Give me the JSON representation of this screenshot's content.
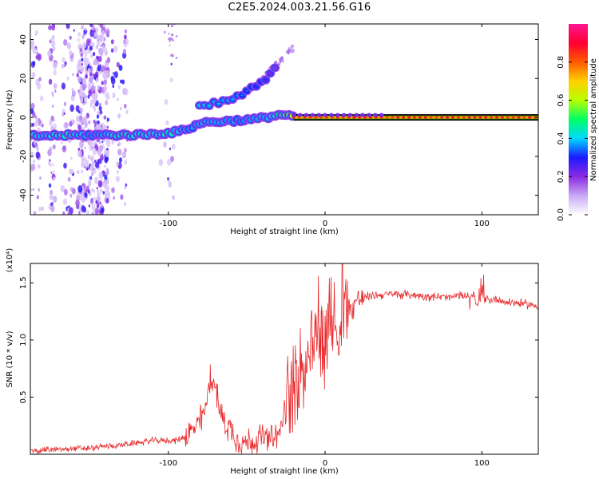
{
  "title": "C2E5.2024.003.21.56.G16",
  "chart_data": [
    {
      "type": "heatmap",
      "xlabel": "Height of straight line (km)",
      "ylabel": "Frequency (Hz)",
      "xlim": [
        -188,
        136
      ],
      "ylim": [
        -50,
        48
      ],
      "x_ticks": [
        -100,
        0,
        100
      ],
      "x_tick_labels": [
        "-100",
        "0",
        "100"
      ],
      "y_ticks": [
        -40,
        -20,
        0,
        20,
        40
      ],
      "y_tick_labels": [
        "-40",
        "-20",
        "0",
        "20",
        "40"
      ],
      "colorbar": {
        "label": "Normalized spectral amplitude",
        "range": [
          0.0,
          1.0
        ],
        "ticks": [
          0.0,
          0.2,
          0.4,
          0.6,
          0.8
        ],
        "tick_labels": [
          "0.0",
          "0.2",
          "0.4",
          "0.6",
          "0.8"
        ],
        "colors": [
          "#ffffff",
          "#c9a8f5",
          "#8a2be2",
          "#1a1aff",
          "#00d8ff",
          "#00ff66",
          "#b8ff00",
          "#ffd000",
          "#ff5a00",
          "#ff0030",
          "#ff1493"
        ]
      },
      "ridge": [
        {
          "x": -188,
          "y": -9.5,
          "a": 0.45
        },
        {
          "x": -175,
          "y": -9.3,
          "a": 0.5
        },
        {
          "x": -163,
          "y": -9.2,
          "a": 0.55
        },
        {
          "x": -150,
          "y": -9.0,
          "a": 0.4
        },
        {
          "x": -140,
          "y": -9.0,
          "a": 0.45
        },
        {
          "x": -130,
          "y": -9.0,
          "a": 0.55
        },
        {
          "x": -120,
          "y": -9.0,
          "a": 0.5
        },
        {
          "x": -110,
          "y": -8.5,
          "a": 0.5
        },
        {
          "x": -100,
          "y": -8.0,
          "a": 0.5
        },
        {
          "x": -92,
          "y": -7.0,
          "a": 0.45
        },
        {
          "x": -85,
          "y": -5.0,
          "a": 0.4
        },
        {
          "x": -80,
          "y": -3.0,
          "a": 0.45
        },
        {
          "x": -75,
          "y": -2.5,
          "a": 0.45
        },
        {
          "x": -65,
          "y": -2.0,
          "a": 0.45
        },
        {
          "x": -55,
          "y": -1.5,
          "a": 0.4
        },
        {
          "x": -45,
          "y": -1.0,
          "a": 0.45
        },
        {
          "x": -35,
          "y": 0.5,
          "a": 0.45
        },
        {
          "x": -27,
          "y": 1.5,
          "a": 0.6
        },
        {
          "x": -20,
          "y": 0.5,
          "a": 0.7
        },
        {
          "x": -10,
          "y": 0.2,
          "a": 0.8
        },
        {
          "x": 0,
          "y": 0.0,
          "a": 0.85
        },
        {
          "x": 20,
          "y": 0.0,
          "a": 0.85
        },
        {
          "x": 50,
          "y": 0.0,
          "a": 0.88
        },
        {
          "x": 80,
          "y": 0.0,
          "a": 0.88
        },
        {
          "x": 110,
          "y": 0.0,
          "a": 0.9
        },
        {
          "x": 136,
          "y": 0.0,
          "a": 0.9
        }
      ],
      "upper_branch": [
        {
          "x": -80,
          "y": 5,
          "a": 0.45
        },
        {
          "x": -70,
          "y": 7,
          "a": 0.4
        },
        {
          "x": -60,
          "y": 9,
          "a": 0.4
        },
        {
          "x": -50,
          "y": 13,
          "a": 0.35
        },
        {
          "x": -40,
          "y": 18,
          "a": 0.3
        },
        {
          "x": -30,
          "y": 26,
          "a": 0.2
        }
      ]
    },
    {
      "type": "line",
      "xlabel": "Height of straight line (km)",
      "ylabel": "SNR (10 * v/v)",
      "multiplier": "(x10⁴)",
      "xlim": [
        -188,
        136
      ],
      "ylim": [
        0.0,
        1.67
      ],
      "x_ticks": [
        -100,
        0,
        100
      ],
      "x_tick_labels": [
        "-100",
        "0",
        "100"
      ],
      "y_ticks": [
        0.5,
        1.0,
        1.5
      ],
      "y_tick_labels": [
        "0.5",
        "1.0",
        "1.5"
      ],
      "color": "#e8282a",
      "series": [
        {
          "x": [
            -188,
            -180,
            -170,
            -160,
            -150,
            -140,
            -130,
            -120,
            -110,
            -100,
            -95,
            -90,
            -85,
            -80,
            -75,
            -72,
            -70,
            -68,
            -65,
            -62,
            -58,
            -55,
            -50,
            -45,
            -40,
            -35,
            -30,
            -25,
            -22,
            -20,
            -18,
            -15,
            -12,
            -10,
            -8,
            -6,
            -4,
            -2,
            0,
            2,
            4,
            6,
            8,
            10,
            12,
            14,
            16,
            18,
            20,
            25,
            30,
            40,
            50,
            60,
            70,
            80,
            85,
            90,
            93,
            95,
            97,
            100,
            105,
            110,
            115,
            120,
            125,
            130,
            136
          ],
          "y": [
            0.03,
            0.04,
            0.04,
            0.05,
            0.05,
            0.07,
            0.08,
            0.1,
            0.12,
            0.12,
            0.12,
            0.15,
            0.2,
            0.28,
            0.45,
            0.7,
            0.55,
            0.42,
            0.3,
            0.25,
            0.18,
            0.12,
            0.1,
            0.12,
            0.15,
            0.12,
            0.15,
            0.4,
            0.55,
            0.65,
            0.7,
            0.8,
            0.85,
            0.95,
            1.0,
            1.05,
            1.1,
            1.0,
            1.15,
            1.2,
            1.1,
            1.2,
            1.0,
            1.25,
            1.3,
            1.35,
            1.25,
            1.3,
            1.35,
            1.37,
            1.39,
            1.4,
            1.4,
            1.39,
            1.38,
            1.37,
            1.39,
            1.38,
            1.38,
            1.4,
            1.3,
            1.38,
            1.35,
            1.36,
            1.33,
            1.33,
            1.32,
            1.31,
            1.3
          ]
        }
      ]
    }
  ]
}
